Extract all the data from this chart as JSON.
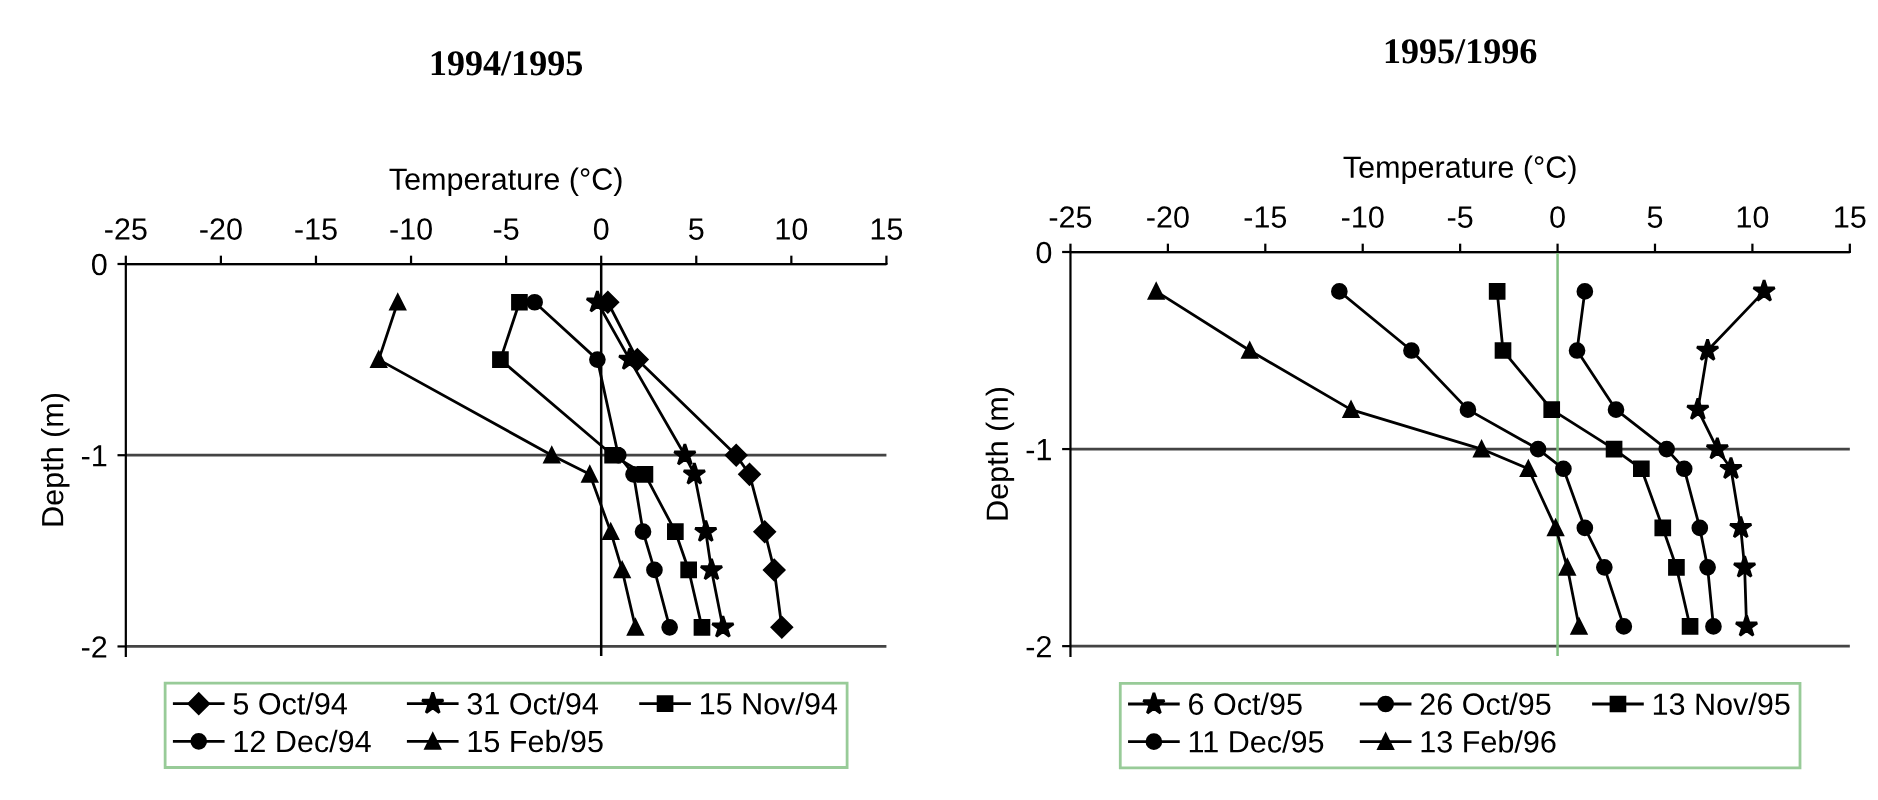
{
  "chart_data": [
    {
      "type": "line",
      "title": "1994/1995",
      "xlabel": "Temperature (°C)",
      "ylabel": "Depth (m)",
      "xlim": [
        -25,
        15
      ],
      "xticks": [
        -25,
        -20,
        -15,
        -10,
        -5,
        0,
        5,
        10,
        15
      ],
      "ylim": [
        -2.05,
        0
      ],
      "yticks": [
        0,
        -1,
        -2
      ],
      "grid": "y",
      "legend": "bottom",
      "line_style": "solid",
      "ref_lines": [
        {
          "axis": "x",
          "value": 0,
          "color": "#000000"
        }
      ],
      "series": [
        {
          "name": "5 Oct/94",
          "color": "#000000",
          "marker": "diamond",
          "x": [
            0.35,
            1.9,
            7.1,
            7.8,
            8.6,
            9.1,
            9.5
          ],
          "values": [
            -0.2,
            -0.5,
            -1.0,
            -1.1,
            -1.4,
            -1.6,
            -1.9
          ]
        },
        {
          "name": "31 Oct/94",
          "color": "#000000",
          "marker": "star",
          "x": [
            -0.2,
            1.5,
            4.4,
            4.9,
            5.5,
            5.8,
            6.4
          ],
          "values": [
            -0.2,
            -0.5,
            -1.0,
            -1.1,
            -1.4,
            -1.6,
            -1.9
          ]
        },
        {
          "name": "15 Nov/94",
          "color": "#000000",
          "marker": "square",
          "x": [
            -4.3,
            -5.3,
            0.6,
            2.3,
            3.9,
            4.6,
            5.3
          ],
          "values": [
            -0.2,
            -0.5,
            -1.0,
            -1.1,
            -1.4,
            -1.6,
            -1.9
          ]
        },
        {
          "name": "12 Dec/94",
          "color": "#000000",
          "marker": "circle",
          "x": [
            -3.5,
            -0.2,
            0.9,
            1.7,
            2.2,
            2.8,
            3.6
          ],
          "values": [
            -0.2,
            -0.5,
            -1.0,
            -1.1,
            -1.4,
            -1.6,
            -1.9
          ]
        },
        {
          "name": "15 Feb/95",
          "color": "#000000",
          "marker": "triangle",
          "x": [
            -10.7,
            -11.7,
            -2.6,
            -0.6,
            0.5,
            1.1,
            1.8
          ],
          "values": [
            -0.2,
            -0.5,
            -1.0,
            -1.1,
            -1.4,
            -1.6,
            -1.9
          ]
        }
      ]
    },
    {
      "type": "line",
      "title": "1995/1996",
      "xlabel": "Temperature (°C)",
      "ylabel": "Depth (m)",
      "xlim": [
        -25,
        15
      ],
      "xticks": [
        -25,
        -20,
        -15,
        -10,
        -5,
        0,
        5,
        10,
        15
      ],
      "ylim": [
        -2.05,
        0
      ],
      "yticks": [
        0,
        -1,
        -2
      ],
      "grid": "y",
      "legend": "bottom",
      "line_style": "solid",
      "ref_lines": [
        {
          "axis": "x",
          "value": 0,
          "color": "#7fbf7f"
        }
      ],
      "series": [
        {
          "name": "6 Oct/95",
          "color": "#000000",
          "marker": "star",
          "x": [
            10.6,
            7.7,
            7.2,
            8.2,
            8.9,
            9.4,
            9.6,
            9.7
          ],
          "values": [
            -0.2,
            -0.5,
            -0.8,
            -1.0,
            -1.1,
            -1.4,
            -1.6,
            -1.9
          ]
        },
        {
          "name": "26 Oct/95",
          "color": "#000000",
          "marker": "circle",
          "x": [
            1.4,
            1.0,
            3.0,
            5.6,
            6.5,
            7.3,
            7.7,
            8.0
          ],
          "values": [
            -0.2,
            -0.5,
            -0.8,
            -1.0,
            -1.1,
            -1.4,
            -1.6,
            -1.9
          ]
        },
        {
          "name": "13 Nov/95",
          "color": "#000000",
          "marker": "square",
          "x": [
            -3.1,
            -2.8,
            -0.3,
            2.9,
            4.3,
            5.4,
            6.1,
            6.8
          ],
          "values": [
            -0.2,
            -0.5,
            -0.8,
            -1.0,
            -1.1,
            -1.4,
            -1.6,
            -1.9
          ]
        },
        {
          "name": "11 Dec/95",
          "color": "#000000",
          "marker": "circle",
          "x": [
            -11.2,
            -7.5,
            -4.6,
            -1.0,
            0.3,
            1.4,
            2.4,
            3.4
          ],
          "values": [
            -0.2,
            -0.5,
            -0.8,
            -1.0,
            -1.1,
            -1.4,
            -1.6,
            -1.9
          ]
        },
        {
          "name": "13 Feb/96",
          "color": "#000000",
          "marker": "triangle",
          "x": [
            -20.6,
            -15.8,
            -10.6,
            -3.9,
            -1.5,
            -0.1,
            0.5,
            1.1
          ],
          "values": [
            -0.2,
            -0.5,
            -0.8,
            -1.0,
            -1.1,
            -1.4,
            -1.6,
            -1.9
          ]
        }
      ]
    }
  ]
}
